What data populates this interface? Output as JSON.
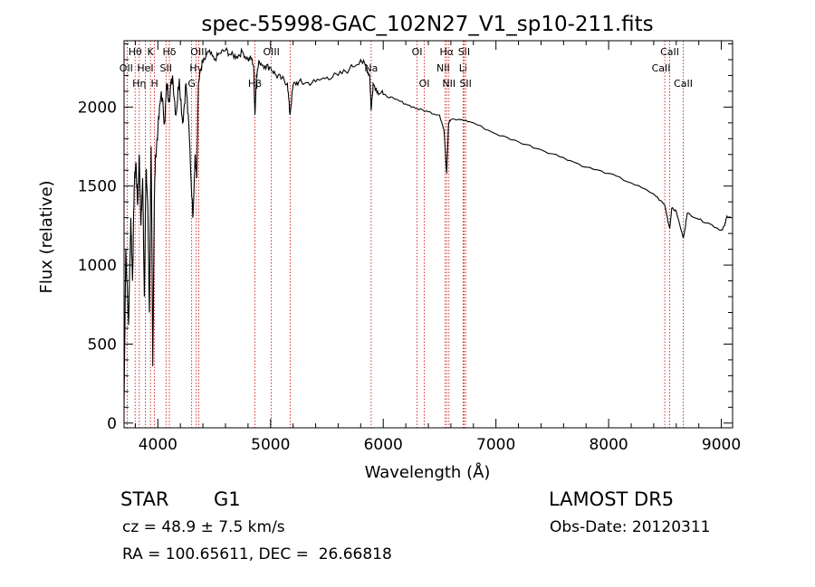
{
  "chart_data": {
    "type": "line",
    "title": "spec-55998-GAC_102N27_V1_sp10-211.fits",
    "xlabel": "Wavelength (Å)",
    "ylabel": "Flux (relative)",
    "xlim": [
      3700,
      9100
    ],
    "ylim": [
      -30,
      2420
    ],
    "xticks": [
      4000,
      5000,
      6000,
      7000,
      8000,
      9000
    ],
    "yticks": [
      0,
      500,
      1000,
      1500,
      2000
    ],
    "series": [
      {
        "x": [
          3700,
          3715,
          3740,
          3760,
          3775,
          3790,
          3805,
          3820,
          3835,
          3850,
          3865,
          3880,
          3895,
          3910,
          3925,
          3940,
          3955,
          3968,
          3980,
          4000,
          4030,
          4060,
          4080,
          4100,
          4130,
          4160,
          4190,
          4220,
          4250,
          4280,
          4310,
          4330,
          4345,
          4360,
          4400,
          4450,
          4500,
          4550,
          4600,
          4650,
          4700,
          4750,
          4800,
          4830,
          4850,
          4861,
          4875,
          4900,
          4950,
          5000,
          5050,
          5100,
          5150,
          5172,
          5200,
          5250,
          5300,
          5400,
          5500,
          5600,
          5700,
          5800,
          5850,
          5880,
          5893,
          5910,
          5950,
          6000,
          6100,
          6200,
          6300,
          6400,
          6500,
          6540,
          6563,
          6580,
          6600,
          6700,
          6800,
          7000,
          7200,
          7400,
          7600,
          7800,
          8000,
          8200,
          8400,
          8498,
          8542,
          8560,
          8600,
          8662,
          8700,
          8800,
          8900,
          9000,
          9030,
          9050,
          9080
        ],
        "y": [
          100,
          1100,
          620,
          1300,
          900,
          1500,
          1650,
          1380,
          1700,
          1250,
          1550,
          800,
          1600,
          1400,
          700,
          1750,
          360,
          1400,
          1700,
          1850,
          2100,
          1900,
          2150,
          2050,
          2200,
          1950,
          2180,
          1900,
          2150,
          1800,
          1300,
          1700,
          1550,
          2150,
          2280,
          2350,
          2300,
          2340,
          2360,
          2330,
          2320,
          2350,
          2300,
          2310,
          2260,
          1950,
          2200,
          2290,
          2260,
          2250,
          2200,
          2180,
          2150,
          1950,
          2140,
          2160,
          2150,
          2160,
          2190,
          2200,
          2240,
          2300,
          2250,
          2200,
          1980,
          2150,
          2100,
          2080,
          2050,
          2020,
          1990,
          1970,
          1950,
          1850,
          1580,
          1900,
          1920,
          1920,
          1900,
          1830,
          1780,
          1730,
          1680,
          1620,
          1580,
          1520,
          1450,
          1380,
          1230,
          1360,
          1340,
          1170,
          1330,
          1290,
          1260,
          1220,
          1250,
          1310,
          1300
        ]
      }
    ],
    "line_markers": [
      {
        "wl": 3727,
        "labels": [
          {
            "text": "OII",
            "row": 2,
            "dx": -1
          }
        ]
      },
      {
        "wl": 3798,
        "labels": [
          {
            "text": "Hθ",
            "row": 1,
            "dx": 0
          }
        ]
      },
      {
        "wl": 3835,
        "labels": [
          {
            "text": "Hη",
            "row": 3,
            "dx": 0
          }
        ]
      },
      {
        "wl": 3889,
        "labels": [
          {
            "text": "HeI",
            "row": 2,
            "dx": 0
          }
        ]
      },
      {
        "wl": 3934,
        "labels": [
          {
            "text": "K",
            "row": 1,
            "dx": 0
          }
        ]
      },
      {
        "wl": 3970,
        "labels": [
          {
            "text": "H",
            "row": 3,
            "dx": 0
          }
        ]
      },
      {
        "wl": 4072,
        "labels": [
          {
            "text": "SII",
            "row": 2,
            "dx": 0
          }
        ]
      },
      {
        "wl": 4102,
        "labels": [
          {
            "text": "Hδ",
            "row": 1,
            "dx": 0
          }
        ]
      },
      {
        "wl": 4300,
        "labels": [
          {
            "text": "G",
            "row": 3,
            "dx": 0
          }
        ]
      },
      {
        "wl": 4340,
        "labels": [
          {
            "text": "Hγ",
            "row": 2,
            "dx": 0
          }
        ]
      },
      {
        "wl": 4363,
        "labels": [
          {
            "text": "OIII",
            "row": 1,
            "dx": 0
          }
        ]
      },
      {
        "wl": 4861,
        "labels": [
          {
            "text": "Hβ",
            "row": 3,
            "dx": 0
          }
        ]
      },
      {
        "wl": 5007,
        "labels": [
          {
            "text": "OIII",
            "row": 1,
            "dx": 0
          }
        ]
      },
      {
        "wl": 5175,
        "labels": []
      },
      {
        "wl": 5893,
        "labels": [
          {
            "text": "Na",
            "row": 2,
            "dx": 0
          }
        ]
      },
      {
        "wl": 6300,
        "labels": [
          {
            "text": "OI",
            "row": 1,
            "dx": 0
          }
        ]
      },
      {
        "wl": 6364,
        "labels": [
          {
            "text": "OI",
            "row": 3,
            "dx": 0
          }
        ]
      },
      {
        "wl": 6548,
        "labels": [
          {
            "text": "NII",
            "row": 2,
            "dx": -2
          }
        ]
      },
      {
        "wl": 6563,
        "labels": [
          {
            "text": "Hα",
            "row": 1,
            "dx": 0
          }
        ]
      },
      {
        "wl": 6583,
        "labels": [
          {
            "text": "NII",
            "row": 3,
            "dx": 0
          }
        ]
      },
      {
        "wl": 6708,
        "labels": [
          {
            "text": "Li",
            "row": 2,
            "dx": 0
          }
        ]
      },
      {
        "wl": 6717,
        "labels": [
          {
            "text": "SII",
            "row": 1,
            "dx": 0
          }
        ]
      },
      {
        "wl": 6731,
        "labels": [
          {
            "text": "SII",
            "row": 3,
            "dx": 0
          }
        ]
      },
      {
        "wl": 8498,
        "labels": [
          {
            "text": "CaII",
            "row": 2,
            "dx": -4
          }
        ]
      },
      {
        "wl": 8542,
        "labels": [
          {
            "text": "CaII",
            "row": 1,
            "dx": 0
          }
        ]
      },
      {
        "wl": 8662,
        "labels": [
          {
            "text": "CaII",
            "row": 3,
            "dx": 0
          }
        ]
      }
    ]
  },
  "info": {
    "class": "STAR",
    "subclass": "G1",
    "survey": "LAMOST DR5",
    "cz": "cz = 48.9 ± 7.5 km/s",
    "obs_date": "Obs-Date: 20120311",
    "coords": "RA = 100.65611, DEC =  26.66818"
  },
  "colors": {
    "marker": "#cc0000",
    "line": "#000000"
  }
}
